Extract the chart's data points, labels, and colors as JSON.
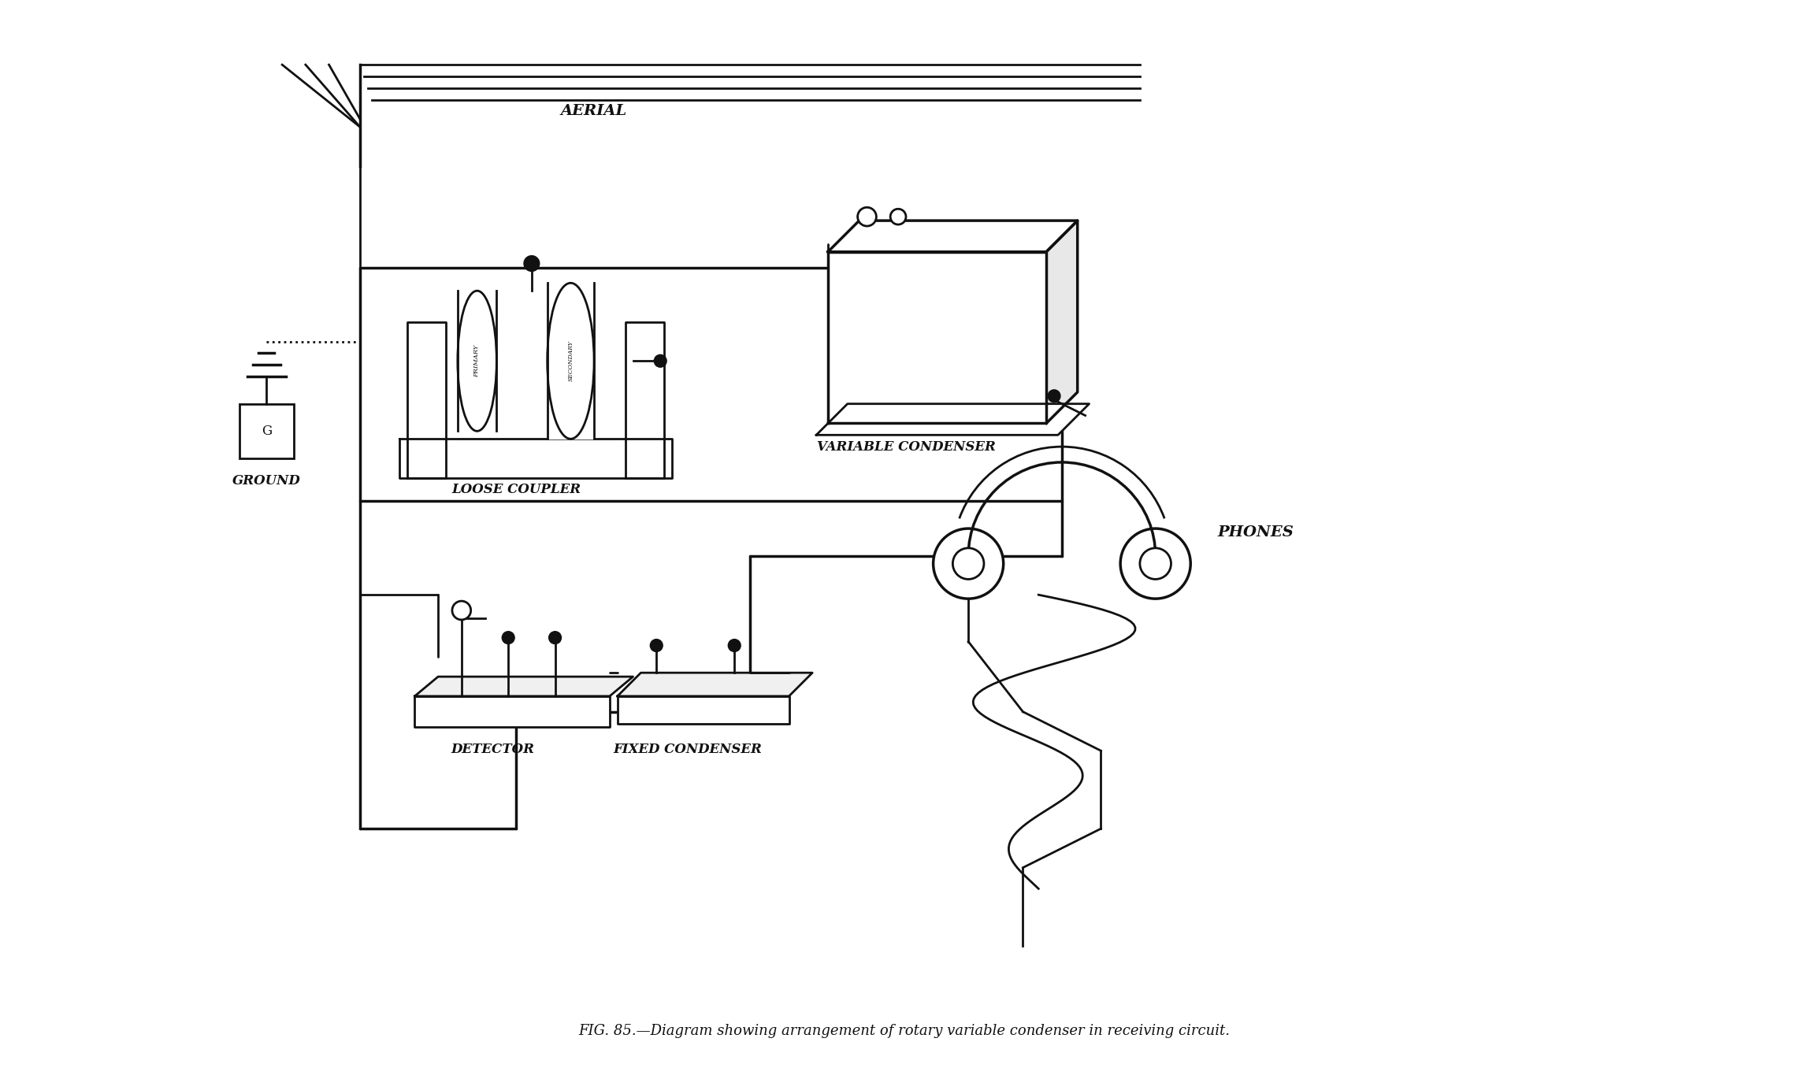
{
  "title": "FIG. 85.—Diagram showing arrangement of rotary variable condenser in receiving circuit.",
  "bg_color": "#ffffff",
  "line_color": "#111111",
  "text_color": "#111111",
  "labels": {
    "aerial": "AERIAL",
    "loose_coupler": "LOOSE COUPLER",
    "variable_condenser": "VARIABLE CONDENSER",
    "ground": "GROUND",
    "detector": "DETECTOR",
    "fixed_condenser": "FIXED CONDENSER",
    "phones": "PHONES"
  },
  "fig_width": 22.95,
  "fig_height": 13.56
}
